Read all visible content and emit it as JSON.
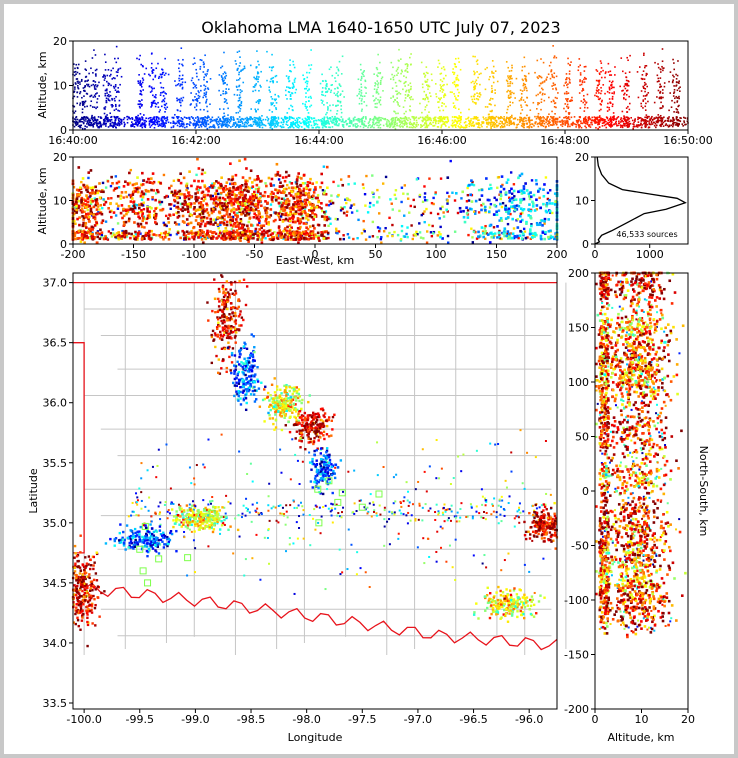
{
  "title": "Oklahoma LMA 1640-1650 UTC July 07, 2023",
  "source_count_label": "46,533 sources",
  "chart_data": [
    {
      "type": "scatter",
      "panel": "time-altitude",
      "ylabel": "Altitude, km",
      "xlabel": "",
      "x_ticks": [
        "16:40:00",
        "16:42:00",
        "16:44:00",
        "16:46:00",
        "16:48:00",
        "16:50:00"
      ],
      "xlim": [
        "16:40:00",
        "16:50:00"
      ],
      "ylim": [
        0,
        20
      ],
      "y_ticks": [
        0,
        10,
        20
      ],
      "color_by": "time",
      "colormap": "jet",
      "bursts_minutes": [
        0.05,
        0.2,
        0.35,
        0.55,
        0.7,
        1.1,
        1.3,
        1.45,
        1.75,
        2.0,
        2.15,
        2.45,
        2.7,
        3.0,
        3.25,
        3.55,
        3.8,
        4.1,
        4.3,
        4.7,
        4.95,
        5.25,
        5.45,
        5.75,
        6.0,
        6.25,
        6.55,
        6.8,
        7.1,
        7.35,
        7.6,
        7.8,
        8.05,
        8.3,
        8.55,
        8.75,
        9.0,
        9.3,
        9.55,
        9.8
      ]
    },
    {
      "type": "scatter",
      "panel": "east-west-altitude",
      "xlabel": "East-West, km",
      "ylabel": "Altitude, km",
      "xlim": [
        -200,
        200
      ],
      "ylim": [
        0,
        20
      ],
      "x_ticks": [
        -200,
        -150,
        -100,
        -50,
        0,
        50,
        100,
        150,
        200
      ],
      "y_ticks": [
        0,
        10,
        20
      ],
      "clusters": [
        {
          "x": -190,
          "spread": 10,
          "n": 260
        },
        {
          "x": -145,
          "spread": 10,
          "n": 180
        },
        {
          "x": -95,
          "spread": 14,
          "n": 300
        },
        {
          "x": -60,
          "spread": 12,
          "n": 420
        },
        {
          "x": -15,
          "spread": 15,
          "n": 420
        },
        {
          "x": 170,
          "spread": 25,
          "n": 260
        }
      ]
    },
    {
      "type": "line",
      "panel": "altitude-histogram",
      "xlim": [
        0,
        1700
      ],
      "ylim": [
        0,
        20
      ],
      "x_ticks": [
        0,
        1000
      ],
      "y_ticks": [
        0,
        10,
        20
      ],
      "profile": [
        [
          0,
          0
        ],
        [
          80,
          0.5
        ],
        [
          60,
          1
        ],
        [
          120,
          2
        ],
        [
          300,
          3
        ],
        [
          600,
          5
        ],
        [
          900,
          7
        ],
        [
          1300,
          8
        ],
        [
          1650,
          9.5
        ],
        [
          1500,
          10.5
        ],
        [
          1000,
          11.5
        ],
        [
          500,
          12.5
        ],
        [
          250,
          14
        ],
        [
          120,
          16
        ],
        [
          60,
          18
        ],
        [
          40,
          20
        ]
      ]
    },
    {
      "type": "scatter",
      "panel": "plan-view",
      "xlabel": "Longitude",
      "ylabel": "Latitude",
      "xlim": [
        -100.1,
        -95.75
      ],
      "ylim": [
        33.45,
        37.08
      ],
      "x_ticks": [
        -100.0,
        -99.5,
        -99.0,
        -98.5,
        -98.0,
        -97.5,
        -97.0,
        -96.5,
        -96.0
      ],
      "y_ticks": [
        33.5,
        34.0,
        34.5,
        35.0,
        35.5,
        36.0,
        36.5,
        37.0
      ],
      "station_markers": [
        {
          "lon": -99.45,
          "lat": 34.97
        },
        {
          "lon": -99.5,
          "lat": 34.78
        },
        {
          "lon": -99.33,
          "lat": 34.7
        },
        {
          "lon": -99.47,
          "lat": 34.6
        },
        {
          "lon": -99.43,
          "lat": 34.5
        },
        {
          "lon": -99.07,
          "lat": 34.71
        },
        {
          "lon": -98.85,
          "lat": 35.08
        },
        {
          "lon": -97.89,
          "lat": 35.0
        },
        {
          "lon": -97.72,
          "lat": 35.17
        },
        {
          "lon": -97.68,
          "lat": 35.25
        },
        {
          "lon": -97.5,
          "lat": 35.13
        },
        {
          "lon": -97.35,
          "lat": 35.24
        },
        {
          "lon": -97.9,
          "lat": 35.28
        },
        {
          "lon": -97.8,
          "lat": 35.35
        }
      ],
      "clusters": [
        {
          "lon": -100.02,
          "lat": 34.45,
          "sx": 0.08,
          "sy": 0.15,
          "n": 300
        },
        {
          "lon": -99.45,
          "lat": 34.86,
          "sx": 0.12,
          "sy": 0.05,
          "n": 180
        },
        {
          "lon": -98.95,
          "lat": 35.04,
          "sx": 0.12,
          "sy": 0.05,
          "n": 240
        },
        {
          "lon": -98.72,
          "lat": 36.7,
          "sx": 0.07,
          "sy": 0.18,
          "n": 220
        },
        {
          "lon": -98.55,
          "lat": 36.25,
          "sx": 0.06,
          "sy": 0.12,
          "n": 180
        },
        {
          "lon": -98.2,
          "lat": 35.98,
          "sx": 0.09,
          "sy": 0.08,
          "n": 220
        },
        {
          "lon": -97.95,
          "lat": 35.8,
          "sx": 0.08,
          "sy": 0.07,
          "n": 200
        },
        {
          "lon": -97.85,
          "lat": 35.45,
          "sx": 0.06,
          "sy": 0.08,
          "n": 140
        },
        {
          "lon": -96.2,
          "lat": 34.32,
          "sx": 0.12,
          "sy": 0.06,
          "n": 200
        },
        {
          "lon": -95.85,
          "lat": 34.98,
          "sx": 0.08,
          "sy": 0.07,
          "n": 220
        }
      ]
    },
    {
      "type": "scatter",
      "panel": "altitude-north-south",
      "xlabel": "Altitude, km",
      "ylabel": "North-South, km",
      "xlim": [
        0,
        20
      ],
      "ylim": [
        -200,
        200
      ],
      "x_ticks": [
        0,
        10,
        20
      ],
      "y_ticks": [
        -200,
        -150,
        -100,
        -50,
        0,
        50,
        100,
        150,
        200
      ],
      "clusters": [
        {
          "y": 190,
          "spread": 10,
          "n": 220
        },
        {
          "y": 150,
          "spread": 8,
          "n": 180
        },
        {
          "y": 125,
          "spread": 10,
          "n": 180
        },
        {
          "y": 105,
          "spread": 12,
          "n": 220
        },
        {
          "y": 65,
          "spread": 25,
          "n": 380
        },
        {
          "y": 10,
          "spread": 8,
          "n": 120
        },
        {
          "y": -35,
          "spread": 20,
          "n": 380
        },
        {
          "y": -80,
          "spread": 15,
          "n": 260
        },
        {
          "y": -105,
          "spread": 12,
          "n": 240
        }
      ]
    }
  ],
  "colors": {
    "state_border": "#e8141c",
    "county_lines": "#c6c6c6",
    "station_marker": "#7dff4a",
    "histogram_line": "#000000"
  }
}
